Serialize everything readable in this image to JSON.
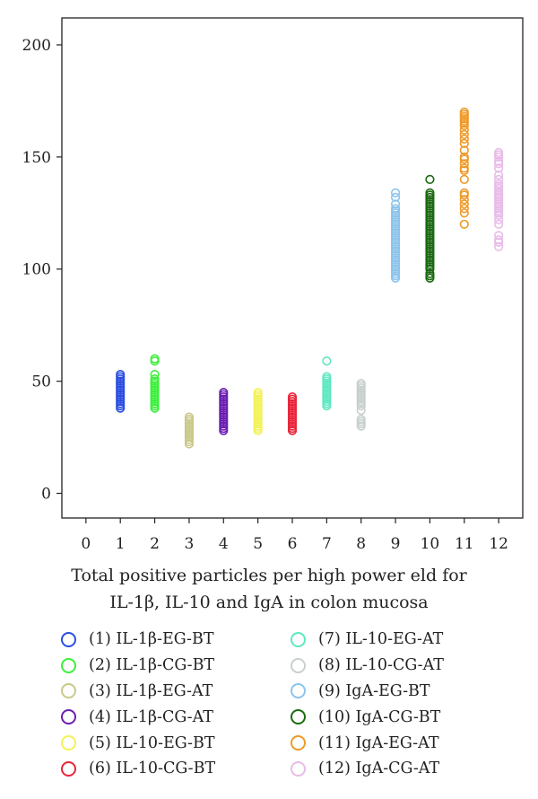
{
  "chart_data": {
    "type": "scatter",
    "title": "",
    "xlabel_lines": [
      "Total positive particles per high power eld for",
      "IL-1β, IL-10 and IgA in colon mucosa"
    ],
    "ylabel": "",
    "xlim": [
      -0.7,
      12.7
    ],
    "ylim": [
      -11,
      212
    ],
    "x_ticks": [
      "0",
      "1",
      "2",
      "3",
      "4",
      "5",
      "6",
      "7",
      "8",
      "9",
      "10",
      "11",
      "12"
    ],
    "y_ticks": [
      "0",
      "50",
      "100",
      "150",
      "200"
    ],
    "y_tick_values": [
      0,
      50,
      100,
      150,
      200
    ],
    "marker": "open-circle",
    "series": [
      {
        "name": "(1) IL-1β-EG-BT",
        "x": 1,
        "color": "#2b4ee0",
        "values": [
          38,
          39,
          40,
          41,
          42,
          43,
          44,
          45,
          46,
          47,
          48,
          49,
          50,
          51,
          52,
          53
        ]
      },
      {
        "name": "(2) IL-1β-CG-BT",
        "x": 2,
        "color": "#3cf03c",
        "values": [
          38,
          39,
          40,
          41,
          42,
          43,
          44,
          45,
          46,
          47,
          48,
          49,
          50,
          51,
          53,
          59,
          60
        ]
      },
      {
        "name": "(3) IL-1β-EG-AT",
        "x": 3,
        "color": "#c9c98a",
        "values": [
          22,
          23,
          24,
          25,
          26,
          27,
          28,
          29,
          30,
          31,
          32,
          33,
          34
        ]
      },
      {
        "name": "(4) IL-1β-CG-AT",
        "x": 4,
        "color": "#6a1fb0",
        "values": [
          28,
          29,
          30,
          31,
          32,
          33,
          34,
          35,
          36,
          37,
          38,
          39,
          40,
          41,
          42,
          43,
          44,
          45
        ]
      },
      {
        "name": "(5) IL-10-EG-BT",
        "x": 5,
        "color": "#f2f25a",
        "values": [
          28,
          29,
          30,
          31,
          32,
          33,
          34,
          35,
          36,
          37,
          38,
          39,
          40,
          41,
          42,
          43,
          44,
          45
        ]
      },
      {
        "name": "(6) IL-10-CG-BT",
        "x": 6,
        "color": "#e8253a",
        "values": [
          28,
          29,
          30,
          31,
          32,
          33,
          34,
          35,
          36,
          37,
          38,
          39,
          40,
          41,
          42,
          43
        ]
      },
      {
        "name": "(7) IL-10-EG-AT",
        "x": 7,
        "color": "#5ee8c0",
        "values": [
          39,
          40,
          41,
          42,
          43,
          44,
          45,
          46,
          47,
          48,
          49,
          50,
          51,
          52,
          59
        ]
      },
      {
        "name": "(8) IL-10-CG-AT",
        "x": 8,
        "color": "#c8d0cc",
        "values": [
          30,
          31,
          32,
          33,
          37,
          39,
          40,
          41,
          42,
          43,
          44,
          45,
          46,
          47,
          48,
          49
        ]
      },
      {
        "name": "(9) IgA-EG-BT",
        "x": 9,
        "color": "#8cc4ec",
        "values": [
          96,
          97,
          98,
          99,
          100,
          101,
          102,
          103,
          104,
          105,
          106,
          107,
          108,
          109,
          110,
          111,
          112,
          113,
          114,
          115,
          116,
          117,
          118,
          119,
          120,
          121,
          122,
          123,
          124,
          125,
          126,
          127,
          129,
          132,
          134
        ]
      },
      {
        "name": "(10) IgA-CG-BT",
        "x": 10,
        "color": "#1c6a12",
        "values": [
          96,
          97,
          98,
          100,
          101,
          102,
          103,
          104,
          105,
          106,
          107,
          108,
          109,
          110,
          111,
          112,
          113,
          114,
          115,
          116,
          117,
          118,
          119,
          120,
          121,
          122,
          123,
          124,
          125,
          126,
          127,
          128,
          129,
          130,
          131,
          132,
          133,
          134,
          140
        ]
      },
      {
        "name": "(11) IgA-EG-AT",
        "x": 11,
        "color": "#ee9a2a",
        "values": [
          120,
          125,
          127,
          129,
          131,
          133,
          134,
          140,
          144,
          145,
          147,
          149,
          150,
          153,
          156,
          158,
          160,
          162,
          164,
          165,
          166,
          167,
          168,
          169,
          170
        ]
      },
      {
        "name": "(12) IgA-CG-AT",
        "x": 12,
        "color": "#e8bce8",
        "values": [
          110,
          112,
          113,
          115,
          120,
          122,
          124,
          125,
          126,
          127,
          128,
          129,
          130,
          131,
          132,
          133,
          134,
          135,
          136,
          137,
          138,
          140,
          142,
          145,
          147,
          148,
          150,
          151,
          152
        ]
      }
    ],
    "legend_placement": "below"
  }
}
